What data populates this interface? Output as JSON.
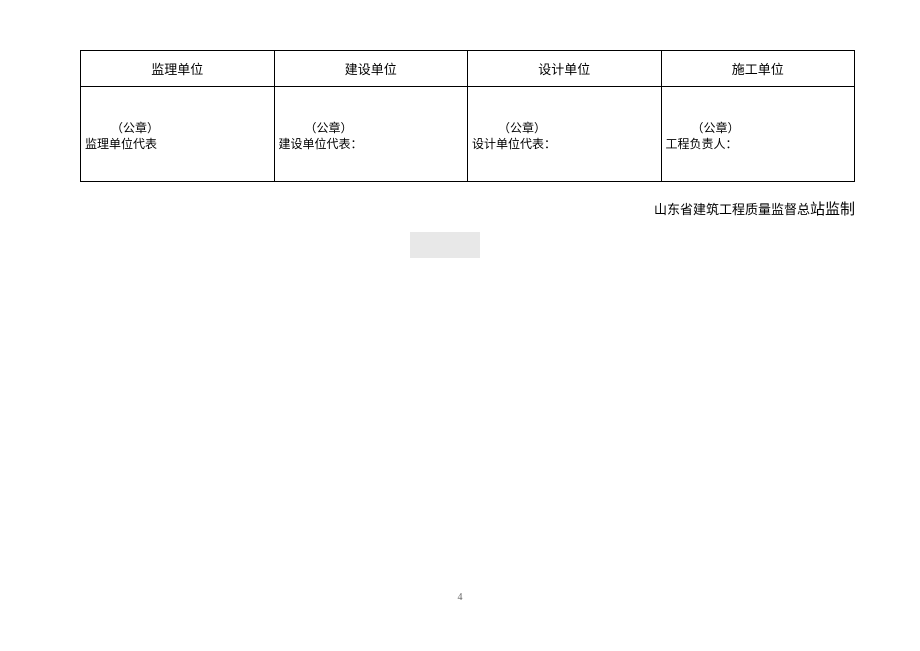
{
  "table": {
    "headers": [
      "监理单位",
      "建设单位",
      "设计单位",
      "施工单位"
    ],
    "cells": [
      {
        "seal": "（公章）",
        "rep": "监理单位代表"
      },
      {
        "seal": "（公章）",
        "rep": "建设单位代表："
      },
      {
        "seal": "（公章）",
        "rep": "设计单位代表："
      },
      {
        "seal": "（公章）",
        "rep": "工程负责人："
      }
    ]
  },
  "footer": {
    "prefix": "山东省建筑工程质量监督总",
    "suffix": "站监制"
  },
  "page_number": "4"
}
